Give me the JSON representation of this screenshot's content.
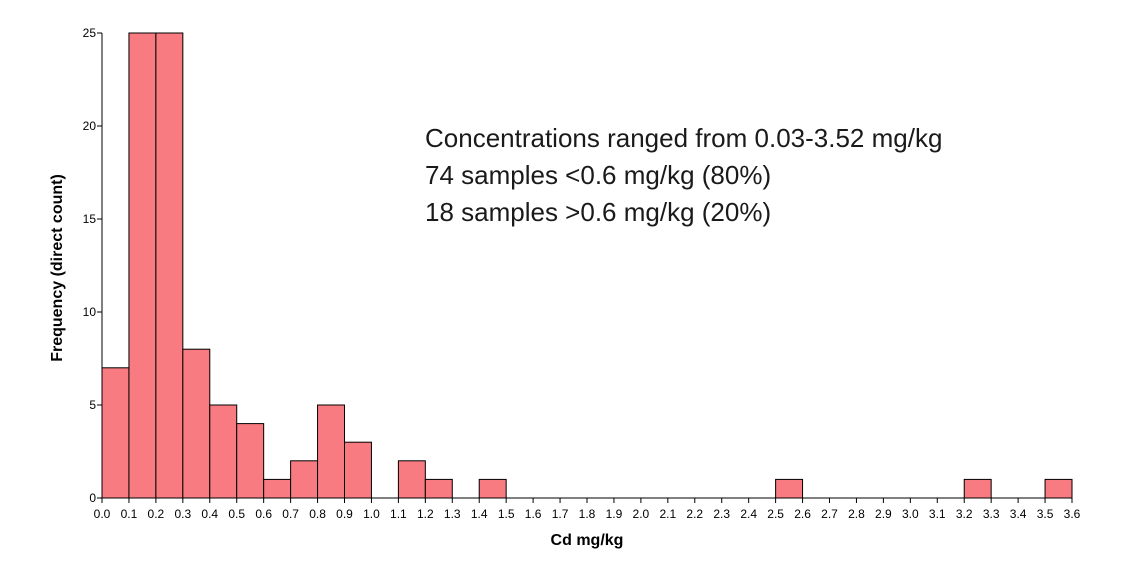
{
  "chart_data": {
    "type": "bar",
    "xlabel": "Cd mg/kg",
    "ylabel": "Frequency (direct count)",
    "xlim": [
      0.0,
      3.6
    ],
    "ylim": [
      0,
      25
    ],
    "bin_width": 0.1,
    "x_ticks": [
      "0.0",
      "0.1",
      "0.2",
      "0.3",
      "0.4",
      "0.5",
      "0.6",
      "0.7",
      "0.8",
      "0.9",
      "1.0",
      "1.1",
      "1.2",
      "1.3",
      "1.4",
      "1.5",
      "1.6",
      "1.7",
      "1.8",
      "1.9",
      "2.0",
      "2.1",
      "2.2",
      "2.3",
      "2.4",
      "2.5",
      "2.6",
      "2.7",
      "2.8",
      "2.9",
      "3.0",
      "3.1",
      "3.2",
      "3.3",
      "3.4",
      "3.5",
      "3.6"
    ],
    "y_ticks": [
      "0",
      "5",
      "10",
      "15",
      "20",
      "25"
    ],
    "bins": [
      {
        "start": 0.0,
        "end": 0.1,
        "count": 7
      },
      {
        "start": 0.1,
        "end": 0.2,
        "count": 25
      },
      {
        "start": 0.2,
        "end": 0.3,
        "count": 25
      },
      {
        "start": 0.3,
        "end": 0.4,
        "count": 8
      },
      {
        "start": 0.4,
        "end": 0.5,
        "count": 5
      },
      {
        "start": 0.5,
        "end": 0.6,
        "count": 4
      },
      {
        "start": 0.6,
        "end": 0.7,
        "count": 1
      },
      {
        "start": 0.7,
        "end": 0.8,
        "count": 2
      },
      {
        "start": 0.8,
        "end": 0.9,
        "count": 5
      },
      {
        "start": 0.9,
        "end": 1.0,
        "count": 3
      },
      {
        "start": 1.1,
        "end": 1.2,
        "count": 2
      },
      {
        "start": 1.2,
        "end": 1.3,
        "count": 1
      },
      {
        "start": 1.4,
        "end": 1.5,
        "count": 1
      },
      {
        "start": 2.5,
        "end": 2.6,
        "count": 1
      },
      {
        "start": 3.2,
        "end": 3.3,
        "count": 1
      },
      {
        "start": 3.5,
        "end": 3.6,
        "count": 1
      }
    ],
    "bar_color": "#f77b80",
    "bar_stroke": "#000000",
    "grid": false,
    "annotations": [
      "Concentrations ranged from 0.03-3.52 mg/kg",
      "74 samples <0.6 mg/kg (80%)",
      "18 samples >0.6 mg/kg (20%)"
    ]
  }
}
